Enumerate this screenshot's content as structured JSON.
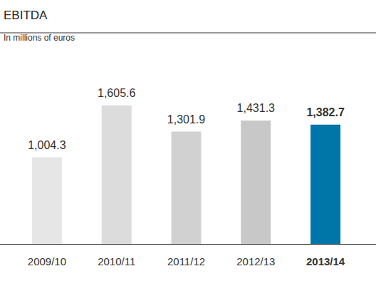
{
  "chart_data": {
    "type": "bar",
    "title": "EBITDA",
    "subtitle": "In millions of euros",
    "categories": [
      "2009/10",
      "2010/11",
      "2011/12",
      "2012/13",
      "2013/14"
    ],
    "values": [
      1004.3,
      1605.6,
      1301.9,
      1431.3,
      1382.7
    ],
    "value_labels": [
      "1,004.3",
      "1,605.6",
      "1,301.9",
      "1,431.3",
      "1,382.7"
    ],
    "colors": [
      "#e6e6e6",
      "#dcdcdc",
      "#d1d1d1",
      "#c8c8c8",
      "#0075a8"
    ],
    "ylim": [
      0,
      2200
    ],
    "grid": false,
    "data_labels": true,
    "tick_labels": "x"
  }
}
